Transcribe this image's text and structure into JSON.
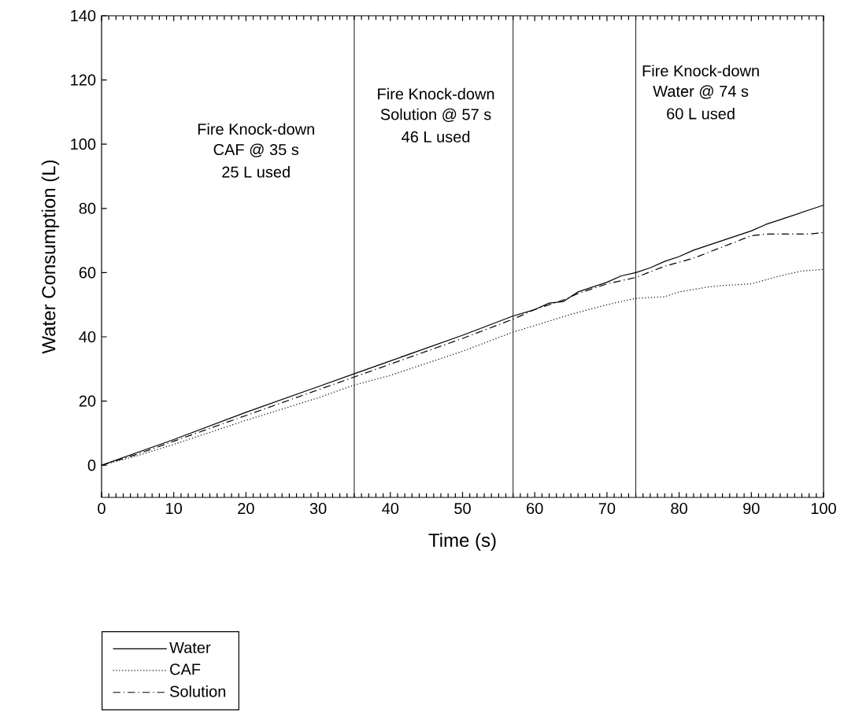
{
  "chart_data": {
    "type": "line",
    "xlabel": "Time (s)",
    "ylabel": "Water Consumption (L)",
    "xlim": [
      0,
      100
    ],
    "ylim": [
      -10,
      140
    ],
    "xticks": [
      0,
      10,
      20,
      30,
      40,
      50,
      60,
      70,
      80,
      90,
      100
    ],
    "yticks": [
      0,
      20,
      40,
      60,
      80,
      100,
      120,
      140
    ],
    "grid": false,
    "legend": "bottom left",
    "marker": "none",
    "series": [
      {
        "name": "Water",
        "color": "#000000",
        "line_style": "solid",
        "x": [
          0,
          5,
          10,
          20,
          30,
          35,
          40,
          50,
          57,
          60,
          62,
          64,
          66,
          70,
          72,
          74,
          76,
          78,
          80,
          82,
          86,
          90,
          92,
          94,
          100
        ],
        "values": [
          0,
          4,
          8,
          16.5,
          24.5,
          28.5,
          32.5,
          40.5,
          46.5,
          48.5,
          50.5,
          51,
          54,
          57,
          59,
          60,
          61.5,
          63.5,
          65,
          67,
          70,
          73,
          75,
          76.5,
          81
        ]
      },
      {
        "name": "CAF",
        "color": "#000000",
        "line_style": "dotted",
        "x": [
          0,
          5,
          10,
          20,
          30,
          35,
          40,
          50,
          57,
          60,
          65,
          70,
          74,
          78,
          80,
          84,
          86,
          90,
          94,
          97,
          100
        ],
        "values": [
          0,
          3,
          6.5,
          14,
          21,
          25,
          28,
          35.5,
          41.5,
          43.5,
          47,
          50,
          52,
          52.5,
          54,
          55.5,
          56,
          56.5,
          59,
          60.5,
          61
        ]
      },
      {
        "name": "Solution",
        "color": "#000000",
        "line_style": "dashdot",
        "x": [
          0,
          5,
          10,
          20,
          30,
          35,
          40,
          50,
          57,
          60,
          62,
          64,
          66,
          70,
          74,
          78,
          82,
          86,
          90,
          92,
          96,
          98,
          100
        ],
        "values": [
          0,
          3.5,
          7.5,
          15.5,
          23.5,
          27.5,
          31.5,
          39.5,
          45.5,
          48.5,
          50,
          51.5,
          53.5,
          56.5,
          58.5,
          62,
          64.5,
          68,
          71.5,
          72,
          72,
          72,
          72.5
        ]
      }
    ],
    "ref_lines": [
      {
        "axis": "x",
        "value": 35,
        "color": "#000000"
      },
      {
        "axis": "x",
        "value": 57,
        "color": "#000000"
      },
      {
        "axis": "x",
        "value": 74,
        "color": "#000000"
      }
    ],
    "annotations": [
      "Fire Knock-down",
      "CAF @ 35 s",
      "25 L used",
      "Fire Knock-down",
      "Solution @ 57 s",
      "46 L used",
      "Fire Knock-down",
      "Water @ 74 s",
      "60 L used"
    ]
  }
}
